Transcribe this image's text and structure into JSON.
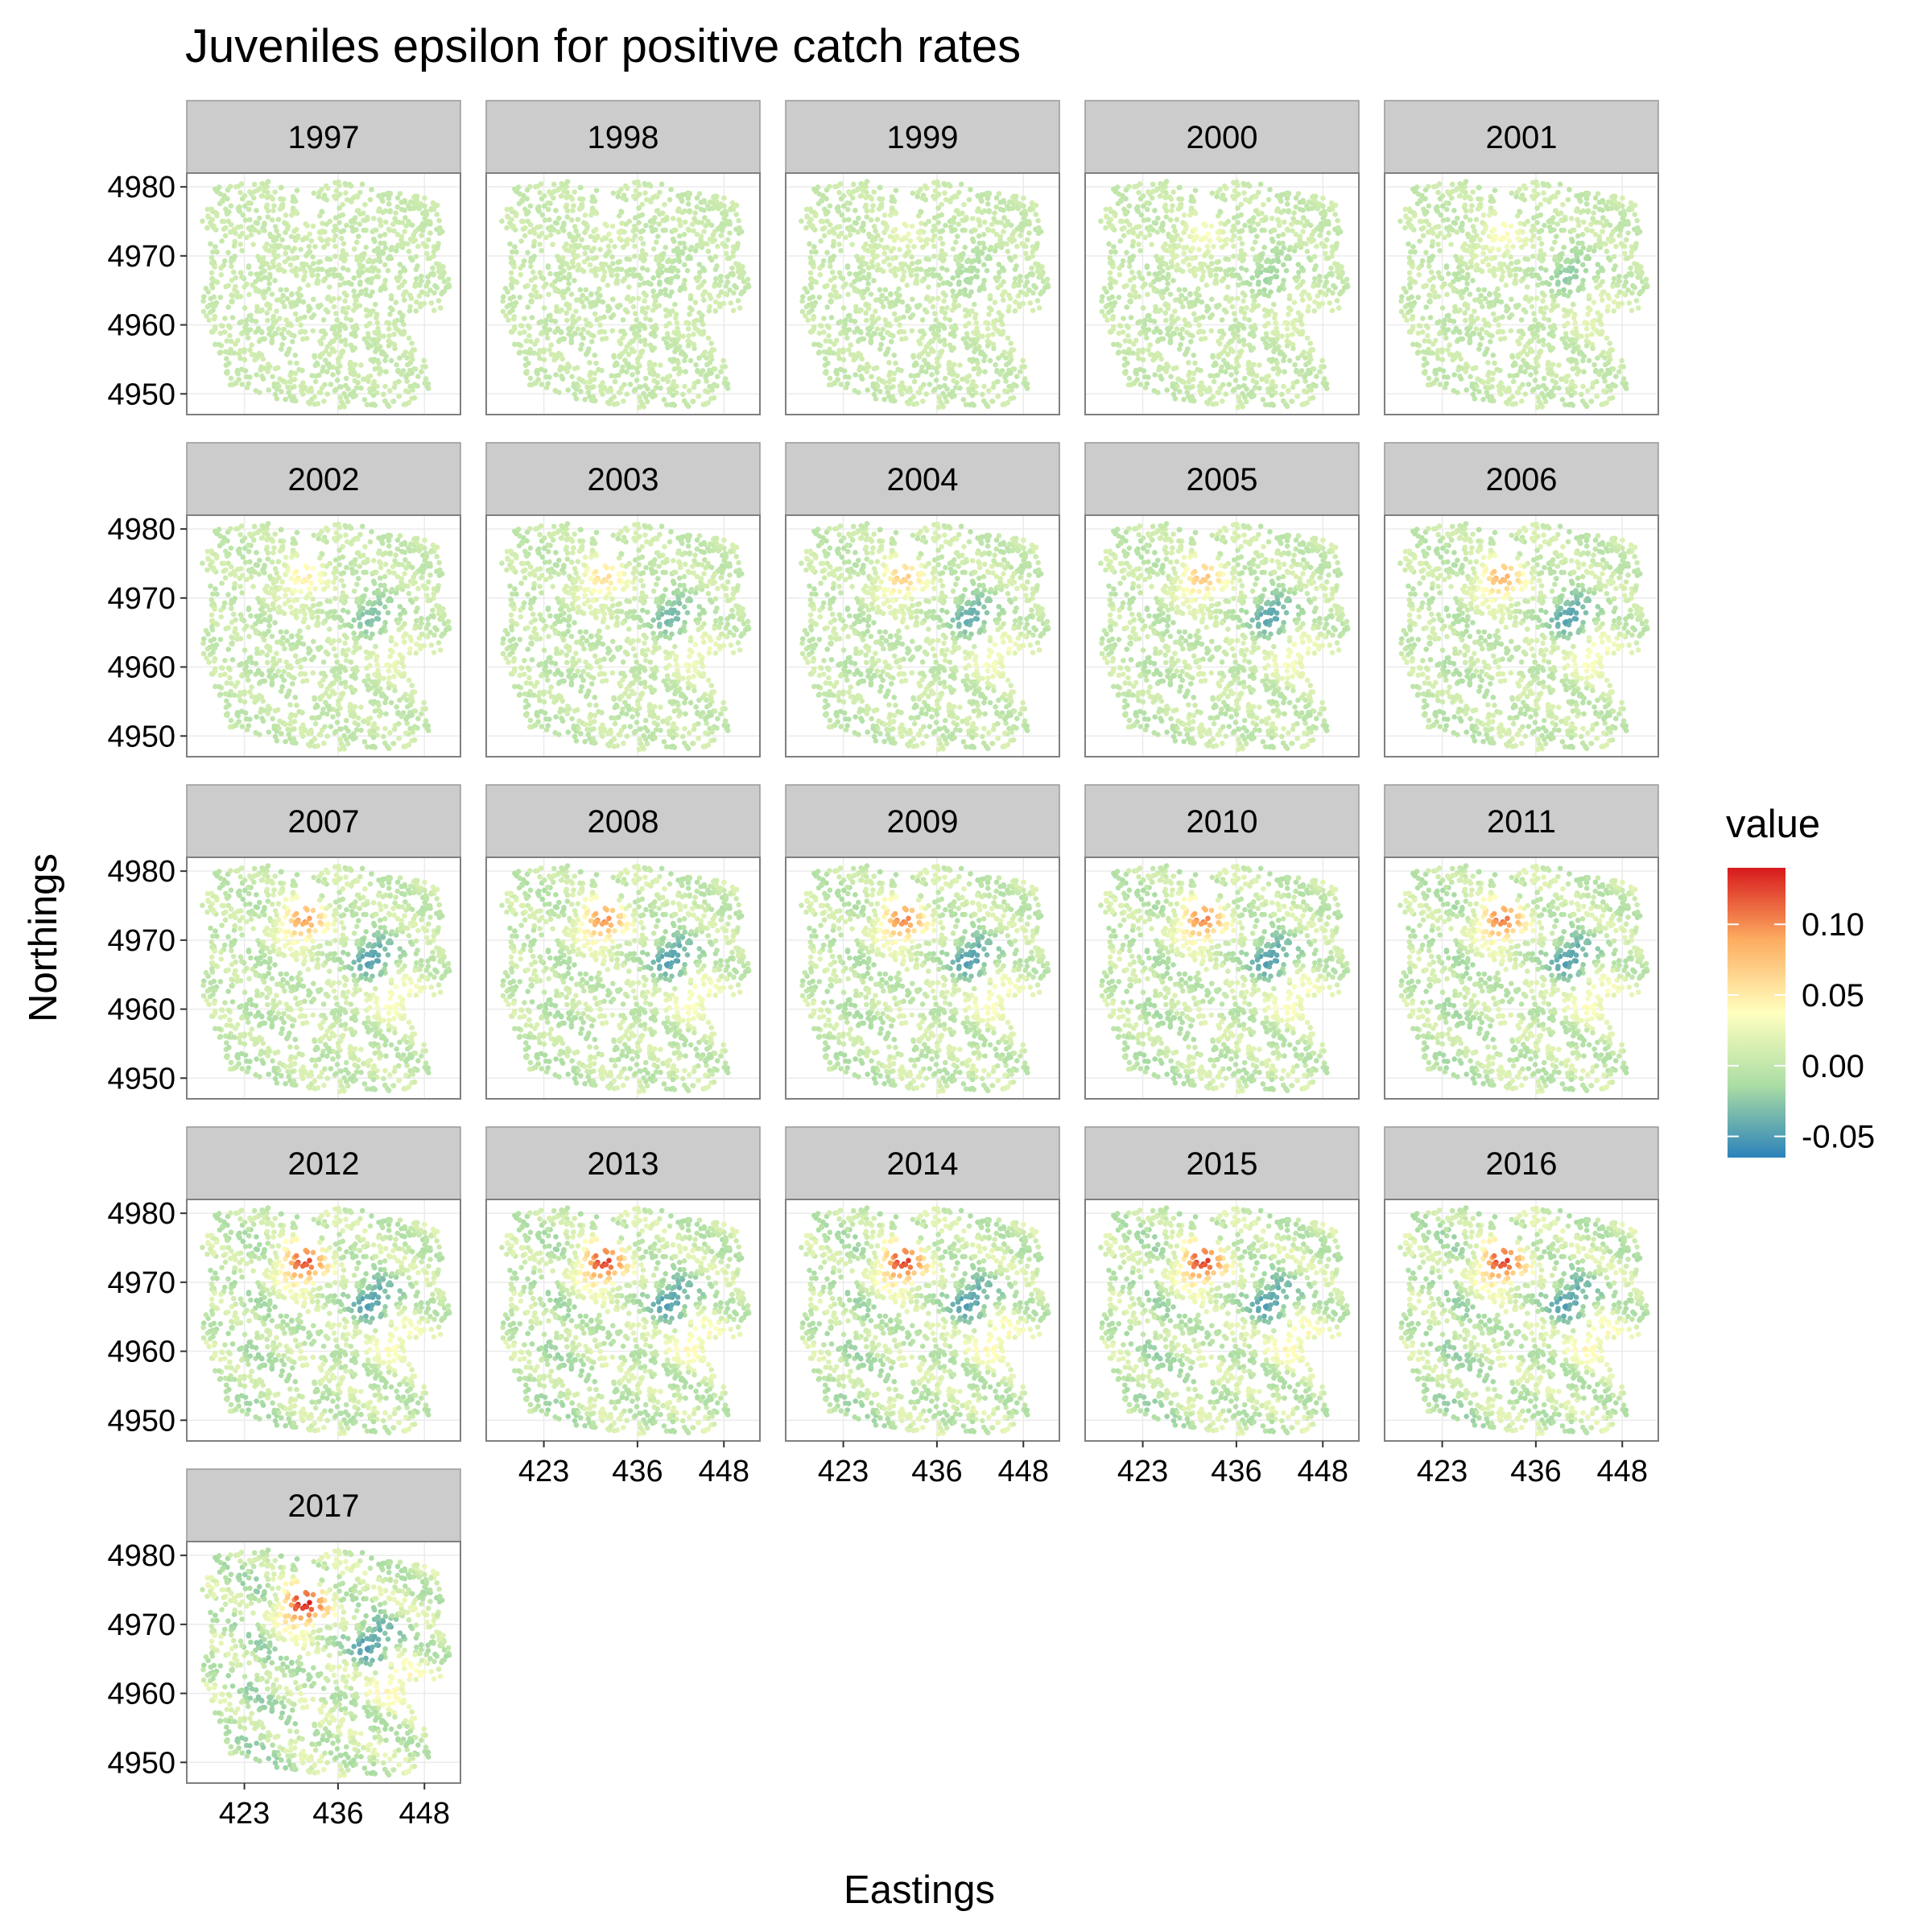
{
  "chart_data": {
    "type": "scatter",
    "title": "Juveniles epsilon for positive catch rates",
    "xlabel": "Eastings",
    "ylabel": "Northings",
    "x_ticks": [
      423,
      436,
      448
    ],
    "y_ticks": [
      4950,
      4960,
      4970,
      4980
    ],
    "xlim": [
      415,
      453
    ],
    "ylim": [
      4947,
      4982
    ],
    "panels": [
      "1997",
      "1998",
      "1999",
      "2000",
      "2001",
      "2002",
      "2003",
      "2004",
      "2005",
      "2006",
      "2007",
      "2008",
      "2009",
      "2010",
      "2011",
      "2012",
      "2013",
      "2014",
      "2015",
      "2016",
      "2017"
    ],
    "legend": {
      "title": "value",
      "position": "right",
      "ticks": [
        "0.10",
        "0.05",
        "0.00",
        "-0.05"
      ],
      "tick_values": [
        0.1,
        0.05,
        0.0,
        -0.05
      ],
      "range": [
        -0.065,
        0.14
      ],
      "colors": [
        "#2b83ba",
        "#abdda4",
        "#ffffbf",
        "#fdae61",
        "#d7191c"
      ]
    },
    "hotspots": [
      {
        "name": "positive",
        "x": 431,
        "y": 4972.5,
        "peak_by_panel": [
          0.005,
          0.01,
          0.02,
          0.03,
          0.035,
          0.045,
          0.055,
          0.065,
          0.07,
          0.08,
          0.09,
          0.095,
          0.1,
          0.1,
          0.105,
          0.12,
          0.125,
          0.125,
          0.125,
          0.125,
          0.135
        ]
      },
      {
        "name": "negative",
        "x": 441,
        "y": 4967.5,
        "peak_by_panel": [
          -0.005,
          -0.012,
          -0.02,
          -0.028,
          -0.035,
          -0.042,
          -0.048,
          -0.055,
          -0.06,
          -0.062,
          -0.063,
          -0.064,
          -0.065,
          -0.065,
          -0.065,
          -0.065,
          -0.065,
          -0.065,
          -0.065,
          -0.065,
          -0.065
        ]
      },
      {
        "name": "southeast",
        "x": 444,
        "y": 4962,
        "peak_by_panel": [
          0.0,
          0.005,
          0.01,
          0.015,
          0.02,
          0.025,
          0.03,
          0.035,
          0.035,
          0.04,
          0.04,
          0.04,
          0.04,
          0.04,
          0.04,
          0.04,
          0.045,
          0.045,
          0.045,
          0.045,
          0.045
        ]
      }
    ],
    "background_value": 0.005,
    "grid": true
  }
}
